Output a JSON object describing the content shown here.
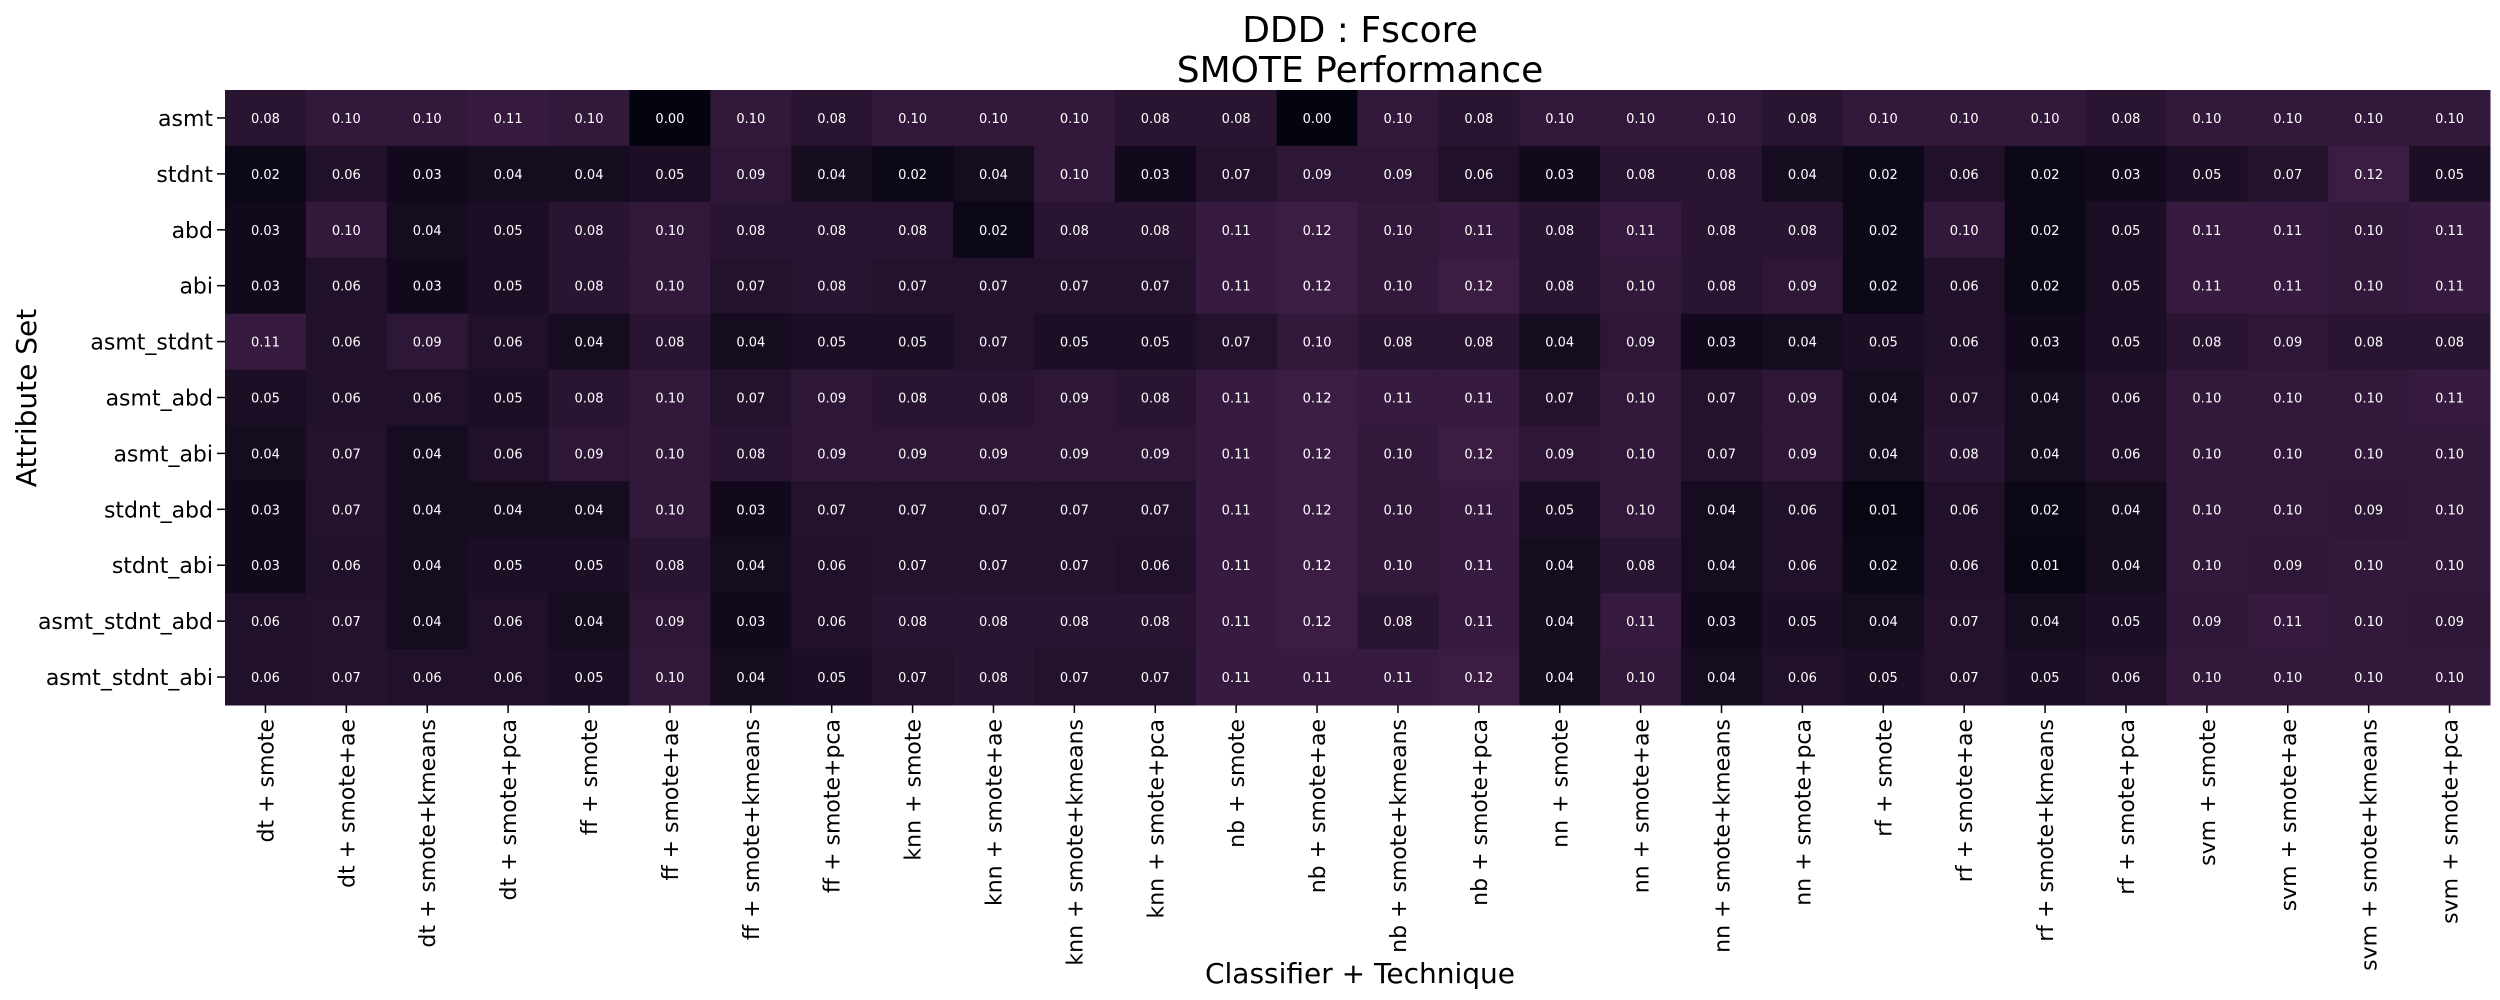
{
  "chart_data": {
    "type": "heatmap",
    "title": "DDD : Fscore",
    "subtitle": "SMOTE Performance",
    "xlabel": "Classifier + Technique",
    "ylabel": "Attribute Set",
    "colormap": {
      "low": "#04040f",
      "high": "#3b1c43"
    },
    "value_range": [
      0.0,
      0.12
    ],
    "columns": [
      "dt + smote",
      "dt + smote+ae",
      "dt + smote+kmeans",
      "dt + smote+pca",
      "ff + smote",
      "ff + smote+ae",
      "ff + smote+kmeans",
      "ff + smote+pca",
      "knn + smote",
      "knn + smote+ae",
      "knn + smote+kmeans",
      "knn + smote+pca",
      "nb + smote",
      "nb + smote+ae",
      "nb + smote+kmeans",
      "nb + smote+pca",
      "nn + smote",
      "nn + smote+ae",
      "nn + smote+kmeans",
      "nn + smote+pca",
      "rf + smote",
      "rf + smote+ae",
      "rf + smote+kmeans",
      "rf + smote+pca",
      "svm + smote",
      "svm + smote+ae",
      "svm + smote+kmeans",
      "svm + smote+pca"
    ],
    "rows": [
      "asmt",
      "stdnt",
      "abd",
      "abi",
      "asmt_stdnt",
      "asmt_abd",
      "asmt_abi",
      "stdnt_abd",
      "stdnt_abi",
      "asmt_stdnt_abd",
      "asmt_stdnt_abi"
    ],
    "values": [
      [
        0.08,
        0.1,
        0.1,
        0.11,
        0.1,
        0.0,
        0.1,
        0.08,
        0.1,
        0.1,
        0.1,
        0.08,
        0.08,
        0.0,
        0.1,
        0.08,
        0.1,
        0.1,
        0.1,
        0.08,
        0.1,
        0.1,
        0.1,
        0.08,
        0.1,
        0.1,
        0.1,
        0.1
      ],
      [
        0.02,
        0.06,
        0.03,
        0.04,
        0.04,
        0.05,
        0.09,
        0.04,
        0.02,
        0.04,
        0.1,
        0.03,
        0.07,
        0.09,
        0.09,
        0.06,
        0.03,
        0.08,
        0.08,
        0.04,
        0.02,
        0.06,
        0.02,
        0.03,
        0.05,
        0.07,
        0.12,
        0.05
      ],
      [
        0.03,
        0.1,
        0.04,
        0.05,
        0.08,
        0.1,
        0.08,
        0.08,
        0.08,
        0.02,
        0.08,
        0.08,
        0.11,
        0.12,
        0.1,
        0.11,
        0.08,
        0.11,
        0.08,
        0.08,
        0.02,
        0.1,
        0.02,
        0.05,
        0.11,
        0.11,
        0.1,
        0.11
      ],
      [
        0.03,
        0.06,
        0.03,
        0.05,
        0.08,
        0.1,
        0.07,
        0.08,
        0.07,
        0.07,
        0.07,
        0.07,
        0.11,
        0.12,
        0.1,
        0.12,
        0.08,
        0.1,
        0.08,
        0.09,
        0.02,
        0.06,
        0.02,
        0.05,
        0.11,
        0.11,
        0.1,
        0.11
      ],
      [
        0.11,
        0.06,
        0.09,
        0.06,
        0.04,
        0.08,
        0.04,
        0.05,
        0.05,
        0.07,
        0.05,
        0.05,
        0.07,
        0.1,
        0.08,
        0.08,
        0.04,
        0.09,
        0.03,
        0.04,
        0.05,
        0.06,
        0.03,
        0.05,
        0.08,
        0.09,
        0.08,
        0.08
      ],
      [
        0.05,
        0.06,
        0.06,
        0.05,
        0.08,
        0.1,
        0.07,
        0.09,
        0.08,
        0.08,
        0.09,
        0.08,
        0.11,
        0.12,
        0.11,
        0.11,
        0.07,
        0.1,
        0.07,
        0.09,
        0.04,
        0.07,
        0.04,
        0.06,
        0.1,
        0.1,
        0.1,
        0.11
      ],
      [
        0.04,
        0.07,
        0.04,
        0.06,
        0.09,
        0.1,
        0.08,
        0.09,
        0.09,
        0.09,
        0.09,
        0.09,
        0.11,
        0.12,
        0.1,
        0.12,
        0.09,
        0.1,
        0.07,
        0.09,
        0.04,
        0.08,
        0.04,
        0.06,
        0.1,
        0.1,
        0.1,
        0.1
      ],
      [
        0.03,
        0.07,
        0.04,
        0.04,
        0.04,
        0.1,
        0.03,
        0.07,
        0.07,
        0.07,
        0.07,
        0.07,
        0.11,
        0.12,
        0.1,
        0.11,
        0.05,
        0.1,
        0.04,
        0.06,
        0.01,
        0.06,
        0.02,
        0.04,
        0.1,
        0.1,
        0.09,
        0.1
      ],
      [
        0.03,
        0.06,
        0.04,
        0.05,
        0.05,
        0.08,
        0.04,
        0.06,
        0.07,
        0.07,
        0.07,
        0.06,
        0.11,
        0.12,
        0.1,
        0.11,
        0.04,
        0.08,
        0.04,
        0.06,
        0.02,
        0.06,
        0.01,
        0.04,
        0.1,
        0.09,
        0.1,
        0.1
      ],
      [
        0.06,
        0.07,
        0.04,
        0.06,
        0.04,
        0.09,
        0.03,
        0.06,
        0.08,
        0.08,
        0.08,
        0.08,
        0.11,
        0.12,
        0.08,
        0.11,
        0.04,
        0.11,
        0.03,
        0.05,
        0.04,
        0.07,
        0.04,
        0.05,
        0.09,
        0.11,
        0.1,
        0.09
      ],
      [
        0.06,
        0.07,
        0.06,
        0.06,
        0.05,
        0.1,
        0.04,
        0.05,
        0.07,
        0.08,
        0.07,
        0.07,
        0.11,
        0.11,
        0.11,
        0.12,
        0.04,
        0.1,
        0.04,
        0.06,
        0.05,
        0.07,
        0.05,
        0.06,
        0.1,
        0.1,
        0.1,
        0.1
      ]
    ]
  }
}
